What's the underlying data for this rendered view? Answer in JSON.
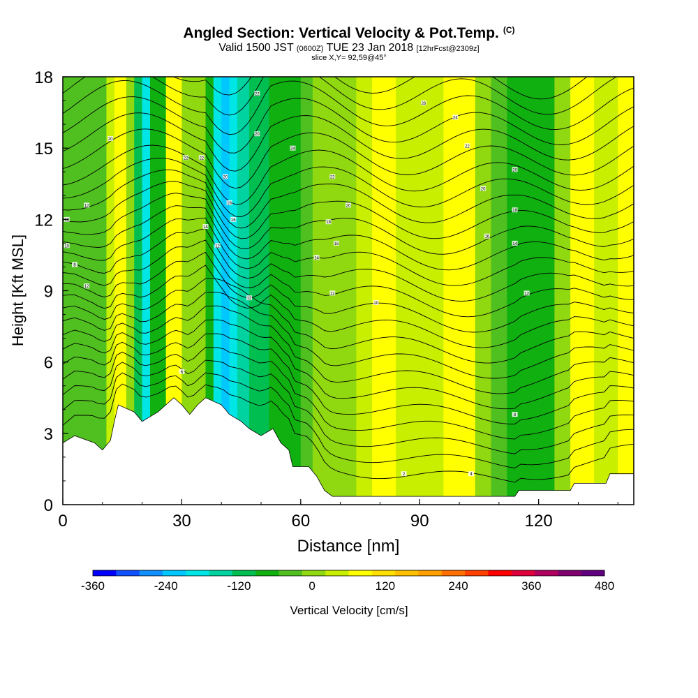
{
  "header": {
    "title": "Angled Section: Vertical Velocity & Pot.Temp.",
    "title_unit": "(C)",
    "valid_prefix": "Valid 1500 JST",
    "valid_zulu": "(0600Z)",
    "valid_date": "TUE 23 Jan 2018",
    "forecast": "[12hrFcst@2309z]",
    "slice": "slice X,Y= 92,59@45°"
  },
  "chart_data": {
    "type": "heatmap",
    "xlabel": "Distance [nm]",
    "ylabel": "Height [Kft MSL]",
    "xlim": [
      0,
      144
    ],
    "ylim": [
      0,
      18
    ],
    "x_ticks": [
      "0",
      "30",
      "60",
      "90",
      "120"
    ],
    "y_ticks": [
      "0",
      "3",
      "6",
      "9",
      "12",
      "15",
      "18"
    ],
    "field": "Vertical Velocity [cm/s]",
    "column_values_x": [
      0,
      4,
      8,
      11,
      13,
      16,
      18,
      20,
      22,
      26,
      30,
      33,
      36,
      38,
      40,
      42,
      44,
      47,
      50,
      52,
      54,
      57,
      60,
      63,
      66,
      70,
      74,
      78,
      81,
      84,
      88,
      92,
      96,
      100,
      104,
      108,
      112,
      116,
      120,
      124,
      128,
      131,
      134,
      137,
      140,
      144
    ],
    "column_values_w": [
      -40,
      -30,
      -40,
      -10,
      60,
      60,
      -30,
      -190,
      -200,
      60,
      60,
      -60,
      30,
      -150,
      -200,
      -230,
      -170,
      -110,
      -130,
      -110,
      -50,
      -70,
      -60,
      -20,
      -10,
      -20,
      30,
      60,
      130,
      50,
      20,
      40,
      60,
      90,
      60,
      -30,
      -40,
      -80,
      -90,
      -20,
      30,
      90,
      80,
      20,
      60,
      100
    ],
    "terrain": [
      [
        0,
        2.6
      ],
      [
        3,
        2.9
      ],
      [
        8,
        2.6
      ],
      [
        10,
        2.3
      ],
      [
        12,
        2.7
      ],
      [
        13,
        3.5
      ],
      [
        14,
        4.2
      ],
      [
        18,
        3.9
      ],
      [
        20,
        3.5
      ],
      [
        24,
        3.9
      ],
      [
        26,
        4.2
      ],
      [
        28,
        4.5
      ],
      [
        30,
        4.2
      ],
      [
        32,
        3.8
      ],
      [
        34,
        4.2
      ],
      [
        36,
        4.5
      ],
      [
        40,
        4.2
      ],
      [
        42,
        3.8
      ],
      [
        45,
        3.5
      ],
      [
        47,
        3.2
      ],
      [
        50,
        2.9
      ],
      [
        53,
        3.2
      ],
      [
        55,
        2.6
      ],
      [
        57,
        2.3
      ],
      [
        58,
        1.6
      ],
      [
        62,
        1.6
      ],
      [
        64,
        1.2
      ],
      [
        66,
        0.6
      ],
      [
        68,
        0.35
      ],
      [
        90,
        0.35
      ],
      [
        114,
        0.35
      ],
      [
        115,
        0.6
      ],
      [
        128,
        0.6
      ],
      [
        129,
        0.9
      ],
      [
        137,
        0.9
      ],
      [
        138,
        1.3
      ],
      [
        144,
        1.3
      ]
    ],
    "isentrope_labels": [
      {
        "x": 6,
        "z": 12.6,
        "t": "12"
      },
      {
        "x": 1,
        "z": 12.0,
        "t": "10"
      },
      {
        "x": 1,
        "z": 10.9,
        "t": "10"
      },
      {
        "x": 3,
        "z": 10.1,
        "t": "8"
      },
      {
        "x": 6,
        "z": 9.2,
        "t": "12"
      },
      {
        "x": 12,
        "z": 15.4,
        "t": "20"
      },
      {
        "x": 31,
        "z": 14.6,
        "t": "22"
      },
      {
        "x": 35,
        "z": 14.6,
        "t": "22"
      },
      {
        "x": 41,
        "z": 13.8,
        "t": "20"
      },
      {
        "x": 42,
        "z": 12.7,
        "t": "18"
      },
      {
        "x": 43,
        "z": 12.0,
        "t": "16"
      },
      {
        "x": 36,
        "z": 11.7,
        "t": "14"
      },
      {
        "x": 39,
        "z": 10.9,
        "t": "12"
      },
      {
        "x": 47,
        "z": 8.7,
        "t": "12"
      },
      {
        "x": 49,
        "z": 17.3,
        "t": "22"
      },
      {
        "x": 49,
        "z": 15.6,
        "t": "20"
      },
      {
        "x": 58,
        "z": 15.0,
        "t": "24"
      },
      {
        "x": 68,
        "z": 13.8,
        "t": "22"
      },
      {
        "x": 72,
        "z": 12.6,
        "t": "20"
      },
      {
        "x": 67,
        "z": 11.9,
        "t": "18"
      },
      {
        "x": 69,
        "z": 11.0,
        "t": "16"
      },
      {
        "x": 64,
        "z": 10.4,
        "t": "14"
      },
      {
        "x": 68,
        "z": 8.9,
        "t": "12"
      },
      {
        "x": 79,
        "z": 8.5,
        "t": "10"
      },
      {
        "x": 91,
        "z": 16.9,
        "t": "26"
      },
      {
        "x": 99,
        "z": 16.3,
        "t": "24"
      },
      {
        "x": 102,
        "z": 15.1,
        "t": "22"
      },
      {
        "x": 106,
        "z": 13.3,
        "t": "20"
      },
      {
        "x": 114,
        "z": 14.1,
        "t": "20"
      },
      {
        "x": 114,
        "z": 12.4,
        "t": "18"
      },
      {
        "x": 107,
        "z": 11.3,
        "t": "16"
      },
      {
        "x": 114,
        "z": 11.0,
        "t": "14"
      },
      {
        "x": 117,
        "z": 8.9,
        "t": "12"
      },
      {
        "x": 30,
        "z": 5.6,
        "t": "6"
      },
      {
        "x": 86,
        "z": 1.3,
        "t": "2"
      },
      {
        "x": 103,
        "z": 1.3,
        "t": "4"
      },
      {
        "x": 114,
        "z": 3.8,
        "t": "8"
      }
    ]
  },
  "colorbar": {
    "label": "Vertical Velocity [cm/s]",
    "ticks": [
      "-360",
      "-240",
      "-120",
      "0",
      "120",
      "240",
      "360",
      "480"
    ],
    "min": -360,
    "max": 480,
    "colors": [
      "#0000ff",
      "#1050ff",
      "#1090ff",
      "#00c8ff",
      "#00e6e6",
      "#00d2a0",
      "#00be50",
      "#10b010",
      "#50c020",
      "#90d810",
      "#c8ee00",
      "#ffff00",
      "#ffe000",
      "#ffc000",
      "#ffa000",
      "#ff7000",
      "#ff4000",
      "#ff0000",
      "#e0003c",
      "#b00060",
      "#800070",
      "#600080"
    ]
  }
}
